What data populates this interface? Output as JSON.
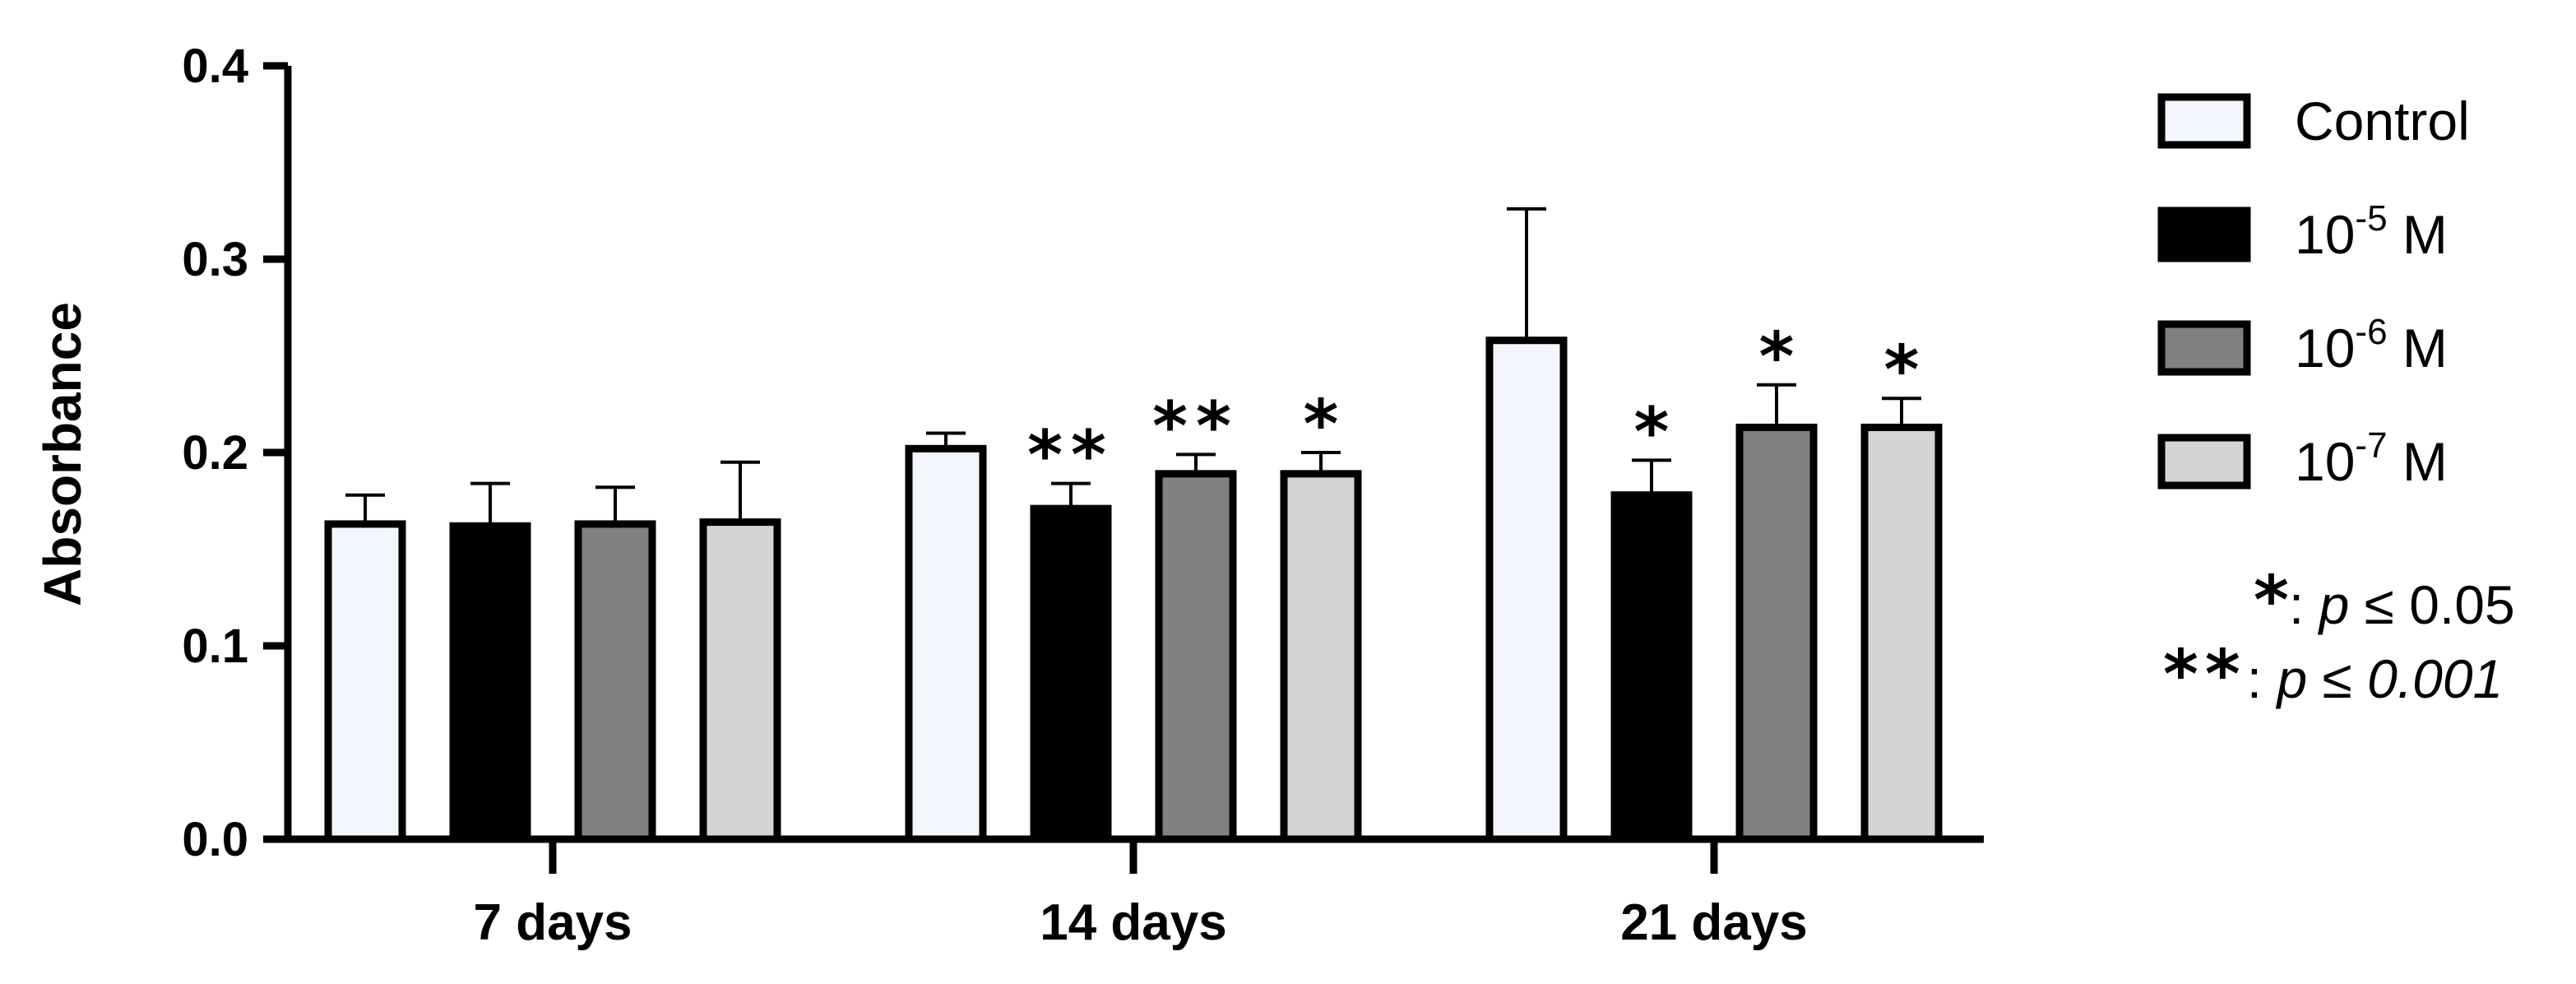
{
  "chart_data": {
    "type": "bar",
    "title": "",
    "xlabel": "",
    "ylabel": "Absorbance",
    "ylim": [
      0,
      0.4
    ],
    "yticks": [
      "0.0",
      "0.1",
      "0.2",
      "0.3",
      "0.4"
    ],
    "grid": false,
    "legend_position": "right",
    "categories": [
      "7 days",
      "14 days",
      "21 days"
    ],
    "series": [
      {
        "name": "Control",
        "name_base": "Control",
        "name_sup": "",
        "name_suffix": "",
        "color": "#f4f6fd",
        "values": [
          0.163,
          0.202,
          0.258
        ],
        "errors": [
          0.015,
          0.008,
          0.068
        ],
        "significance": [
          "",
          "",
          ""
        ]
      },
      {
        "name": "10-5 M",
        "name_base": "10",
        "name_sup": "-5",
        "name_suffix": " M",
        "color": "#000000",
        "values": [
          0.162,
          0.171,
          0.178
        ],
        "errors": [
          0.022,
          0.013,
          0.018
        ],
        "significance": [
          "",
          "**",
          "*"
        ]
      },
      {
        "name": "10-6 M",
        "name_base": "10",
        "name_sup": "-6",
        "name_suffix": " M",
        "color": "#808080",
        "values": [
          0.163,
          0.189,
          0.213
        ],
        "errors": [
          0.019,
          0.01,
          0.022
        ],
        "significance": [
          "",
          "**",
          "*"
        ]
      },
      {
        "name": "10-7 M",
        "name_base": "10",
        "name_sup": "-7",
        "name_suffix": " M",
        "color": "#d4d4d4",
        "values": [
          0.164,
          0.189,
          0.213
        ],
        "errors": [
          0.031,
          0.011,
          0.015
        ],
        "significance": [
          "",
          "*",
          "*"
        ]
      }
    ],
    "annotations": [
      {
        "symbol": "*",
        "prefix": ": ",
        "p_label": "p",
        "comparator": " ≤ ",
        "value": "0.05"
      },
      {
        "symbol": "**",
        "prefix": ": ",
        "p_label": "p",
        "comparator": " ≤ ",
        "value": "0.001"
      }
    ]
  }
}
